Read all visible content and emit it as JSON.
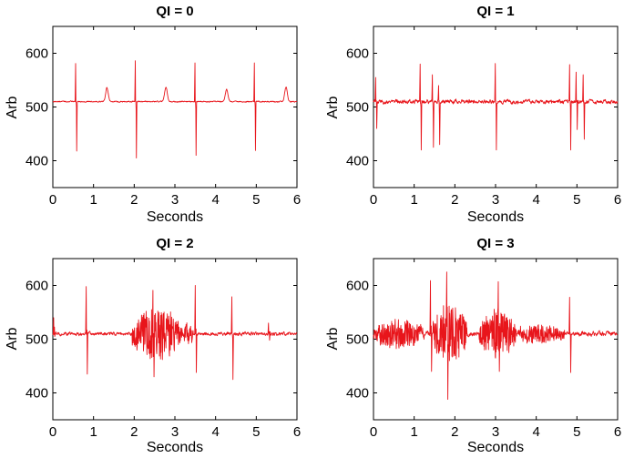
{
  "chart_data": [
    {
      "type": "line",
      "title": "QI = 0",
      "xlabel": "Seconds",
      "ylabel": "Arb",
      "xlim": [
        0,
        6
      ],
      "ylim": [
        350,
        650
      ],
      "xticks": [
        "0",
        "1",
        "2",
        "3",
        "4",
        "5",
        "6"
      ],
      "yticks": [
        "400",
        "500",
        "600"
      ],
      "series": [
        {
          "color": "#e8151b",
          "baseline": 510,
          "noise": 2,
          "events": [
            {
              "x": 0.56,
              "up": 581,
              "down": 418
            },
            {
              "x": 1.33,
              "bump": 536
            },
            {
              "x": 2.03,
              "up": 586,
              "down": 405
            },
            {
              "x": 2.78,
              "bump": 537
            },
            {
              "x": 3.49,
              "up": 582,
              "down": 410
            },
            {
              "x": 4.27,
              "bump": 533
            },
            {
              "x": 4.95,
              "up": 582,
              "down": 419
            },
            {
              "x": 5.73,
              "bump": 537
            }
          ],
          "bursts": []
        }
      ]
    },
    {
      "type": "line",
      "title": "QI = 1",
      "xlabel": "Seconds",
      "ylabel": "Arb",
      "xlim": [
        0,
        6
      ],
      "ylim": [
        350,
        650
      ],
      "xticks": [
        "0",
        "1",
        "2",
        "3",
        "4",
        "5",
        "6"
      ],
      "yticks": [
        "400",
        "500",
        "600"
      ],
      "series": [
        {
          "color": "#e8151b",
          "baseline": 510,
          "noise": 7,
          "events": [
            {
              "x": 0.05,
              "up": 555,
              "down": 460
            },
            {
              "x": 1.15,
              "up": 580,
              "down": 420
            },
            {
              "x": 1.45,
              "up": 560,
              "down": 425
            },
            {
              "x": 1.6,
              "up": 540,
              "down": 430
            },
            {
              "x": 2.99,
              "up": 581,
              "down": 420
            },
            {
              "x": 4.82,
              "up": 579,
              "down": 420
            },
            {
              "x": 4.98,
              "up": 565,
              "down": 458
            },
            {
              "x": 5.15,
              "up": 560,
              "down": 440
            }
          ],
          "bursts": []
        }
      ]
    },
    {
      "type": "line",
      "title": "QI = 2",
      "xlabel": "Seconds",
      "ylabel": "Arb",
      "xlim": [
        0,
        6
      ],
      "ylim": [
        350,
        650
      ],
      "xticks": [
        "0",
        "1",
        "2",
        "3",
        "4",
        "5",
        "6"
      ],
      "yticks": [
        "400",
        "500",
        "600"
      ],
      "series": [
        {
          "color": "#e8151b",
          "baseline": 510,
          "noise": 6,
          "events": [
            {
              "x": 0.02,
              "up": 540,
              "down": 505
            },
            {
              "x": 0.82,
              "up": 598,
              "down": 435
            },
            {
              "x": 2.46,
              "up": 591,
              "down": 430
            },
            {
              "x": 3.5,
              "up": 600,
              "down": 438
            },
            {
              "x": 4.4,
              "up": 579,
              "down": 425
            },
            {
              "x": 5.3,
              "up": 530,
              "down": 498
            }
          ],
          "bursts": [
            {
              "from": 1.95,
              "to": 3.15,
              "amp": 50
            },
            {
              "from": 3.15,
              "to": 3.45,
              "amp": 20
            }
          ]
        }
      ]
    },
    {
      "type": "line",
      "title": "QI = 3",
      "xlabel": "Seconds",
      "ylabel": "Arb",
      "xlim": [
        0,
        6
      ],
      "ylim": [
        350,
        650
      ],
      "xticks": [
        "0",
        "1",
        "2",
        "3",
        "4",
        "5",
        "6"
      ],
      "yticks": [
        "400",
        "500",
        "600"
      ],
      "series": [
        {
          "color": "#e8151b",
          "baseline": 510,
          "noise": 8,
          "events": [
            {
              "x": 1.4,
              "up": 609,
              "down": 440
            },
            {
              "x": 1.8,
              "up": 625,
              "down": 388
            },
            {
              "x": 3.07,
              "up": 607,
              "down": 440
            },
            {
              "x": 4.82,
              "up": 578,
              "down": 438
            }
          ],
          "bursts": [
            {
              "from": 0.0,
              "to": 1.25,
              "amp": 28
            },
            {
              "from": 1.45,
              "to": 2.3,
              "amp": 55
            },
            {
              "from": 2.6,
              "to": 3.5,
              "amp": 45
            },
            {
              "from": 3.5,
              "to": 4.7,
              "amp": 18
            }
          ]
        }
      ]
    }
  ]
}
